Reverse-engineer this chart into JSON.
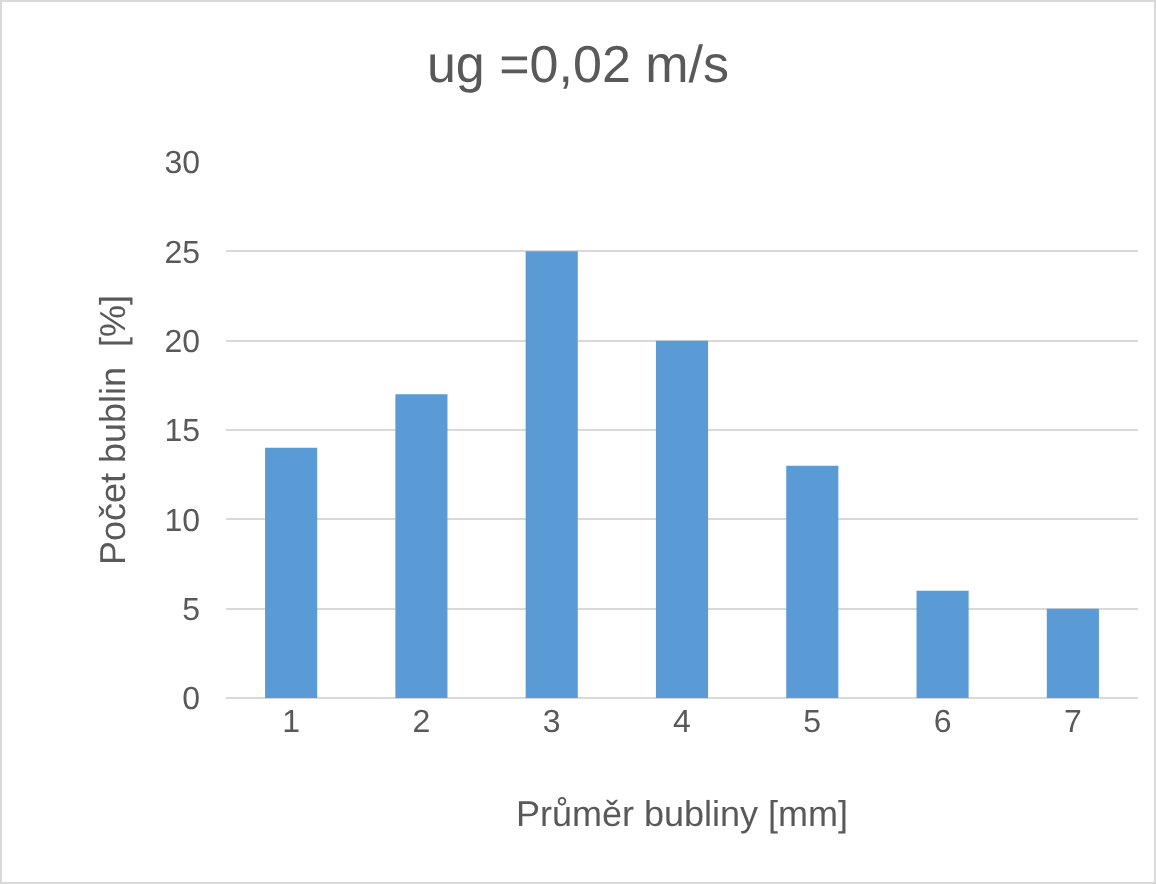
{
  "chart_data": {
    "type": "bar",
    "title": "ug =0,02 m/s",
    "xlabel": "Průměr bubliny [mm]",
    "ylabel": "Počet bublin  [%]",
    "categories": [
      "1",
      "2",
      "3",
      "4",
      "5",
      "6",
      "7"
    ],
    "values": [
      14,
      17,
      25,
      20,
      13,
      6,
      5
    ],
    "color": "#5b9bd5",
    "ylim": [
      0,
      30
    ],
    "yticks": [
      0,
      5,
      10,
      15,
      20,
      25,
      30
    ],
    "grid": "y",
    "legend": false
  }
}
